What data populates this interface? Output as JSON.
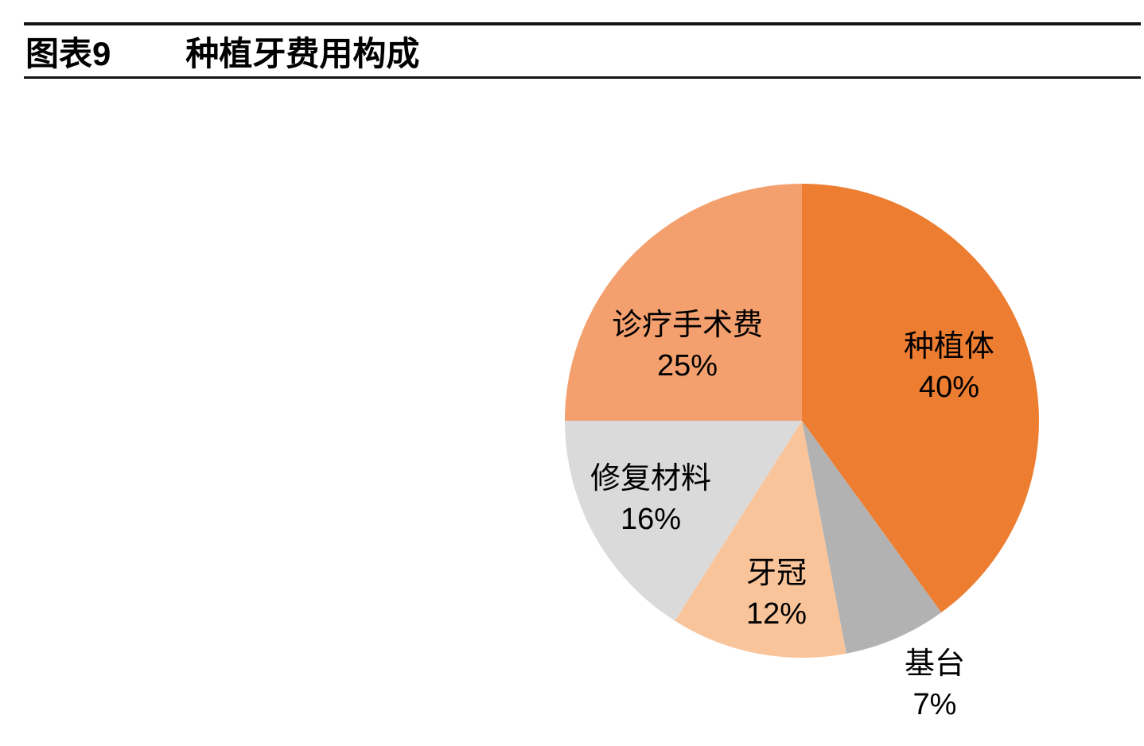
{
  "header": {
    "figure_label": "图表9",
    "title": "种植牙费用构成"
  },
  "chart_data": {
    "type": "pie",
    "title": "种植牙费用构成",
    "unit": "%",
    "start_angle_deg": 0,
    "direction": "clockwise",
    "legend": "none",
    "categories": [
      "种植体",
      "基台",
      "牙冠",
      "修复材料",
      "诊疗手术费"
    ],
    "values": [
      40,
      7,
      12,
      16,
      25
    ],
    "value_labels": [
      "40%",
      "7%",
      "12%",
      "16%",
      "25%"
    ],
    "colors": [
      "#ED7D31",
      "#B2B2B2",
      "#FAC49A",
      "#DADADA",
      "#F4A06E"
    ],
    "slice_ids": [
      "implant",
      "abutment",
      "crown",
      "restoration-material",
      "treatment-surgery-fee"
    ],
    "label_placement": [
      "inside",
      "outside-bottom",
      "inside",
      "inside",
      "inside"
    ],
    "text_color": "#000000"
  }
}
